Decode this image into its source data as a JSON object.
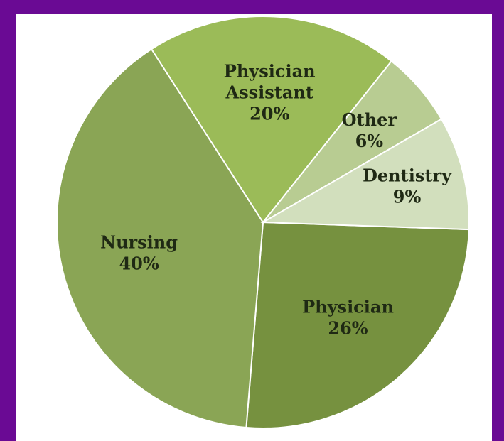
{
  "colors": {
    "background": "#6a0a94",
    "panel": "#ffffff",
    "label": "#1f2914"
  },
  "chart_data": {
    "type": "pie",
    "title": "",
    "start_angle_deg": 2,
    "direction": "clockwise",
    "slices": [
      {
        "label": "Physician",
        "value": 26,
        "value_label": "26%",
        "color": "#76913f"
      },
      {
        "label": "Nursing",
        "value": 40,
        "value_label": "40%",
        "color": "#8aa555"
      },
      {
        "label": "Physician\nAssistant",
        "value": 20,
        "value_label": "20%",
        "color": "#9bbb58"
      },
      {
        "label": "Other",
        "value": 6,
        "value_label": "6%",
        "color": "#b8cc92"
      },
      {
        "label": "Dentistry",
        "value": 9,
        "value_label": "9%",
        "color": "#d2dfbd"
      }
    ]
  }
}
